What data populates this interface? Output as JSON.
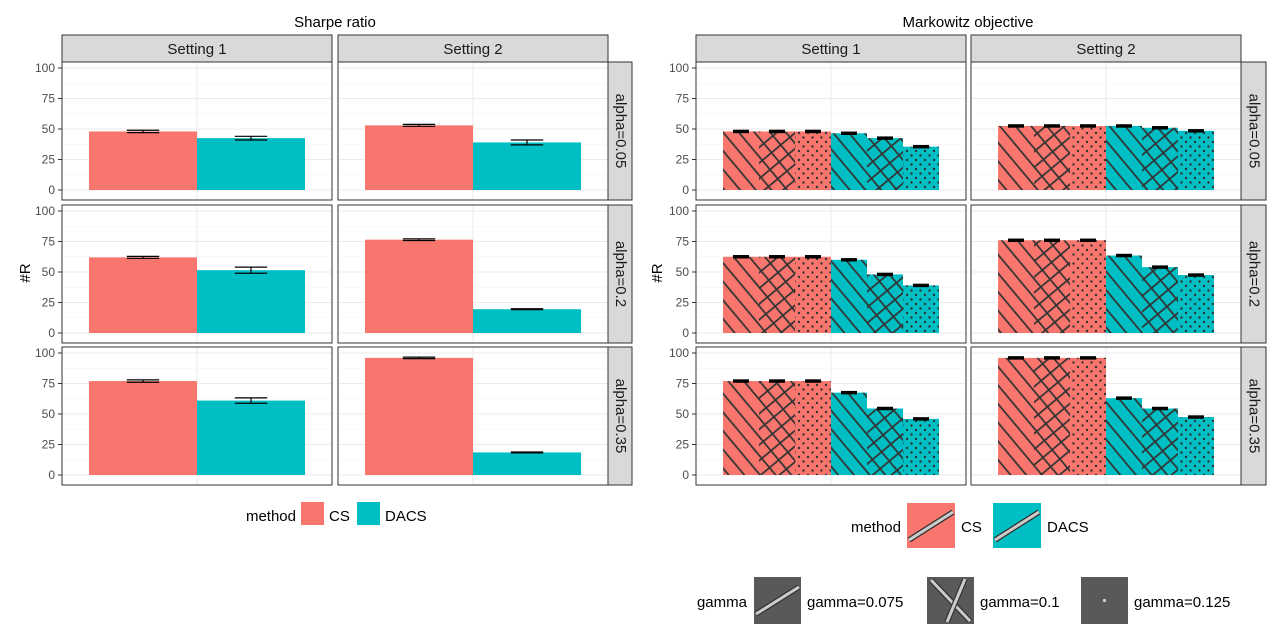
{
  "colors": {
    "CS": "#f8766d",
    "DACS": "#00bfc4",
    "strip_bg": "#d9d9d9",
    "pattern_ink": "#333333"
  },
  "chart_data": [
    {
      "type": "bar",
      "title": "Sharpe ratio",
      "ylabel": "#R",
      "ylim": [
        0,
        100
      ],
      "yticks": [
        0,
        25,
        50,
        75,
        100
      ],
      "columns": [
        "Setting 1",
        "Setting 2"
      ],
      "rows": [
        "alpha=0.05",
        "alpha=0.2",
        "alpha=0.35"
      ],
      "legend": {
        "title": "method",
        "items": [
          "CS",
          "DACS"
        ]
      },
      "panels": [
        {
          "row": 0,
          "col": 0,
          "bars": [
            {
              "method": "CS",
              "value": 48,
              "err": 1.0
            },
            {
              "method": "DACS",
              "value": 42.5,
              "err": 1.5
            }
          ]
        },
        {
          "row": 0,
          "col": 1,
          "bars": [
            {
              "method": "CS",
              "value": 53,
              "err": 0.8
            },
            {
              "method": "DACS",
              "value": 39,
              "err": 2.0
            }
          ]
        },
        {
          "row": 1,
          "col": 0,
          "bars": [
            {
              "method": "CS",
              "value": 62,
              "err": 0.8
            },
            {
              "method": "DACS",
              "value": 51.5,
              "err": 2.5
            }
          ]
        },
        {
          "row": 1,
          "col": 1,
          "bars": [
            {
              "method": "CS",
              "value": 76.5,
              "err": 0.7
            },
            {
              "method": "DACS",
              "value": 19.5,
              "err": 0.4
            }
          ]
        },
        {
          "row": 2,
          "col": 0,
          "bars": [
            {
              "method": "CS",
              "value": 77,
              "err": 1.0
            },
            {
              "method": "DACS",
              "value": 61,
              "err": 2.2
            }
          ]
        },
        {
          "row": 2,
          "col": 1,
          "bars": [
            {
              "method": "CS",
              "value": 96,
              "err": 0.6
            },
            {
              "method": "DACS",
              "value": 18.5,
              "err": 0.4
            }
          ]
        }
      ]
    },
    {
      "type": "bar",
      "title": "Markowitz objective",
      "ylabel": "#R",
      "ylim": [
        0,
        100
      ],
      "yticks": [
        0,
        25,
        50,
        75,
        100
      ],
      "columns": [
        "Setting 1",
        "Setting 2"
      ],
      "rows": [
        "alpha=0.05",
        "alpha=0.2",
        "alpha=0.35"
      ],
      "legend": {
        "title": "method",
        "items": [
          "CS",
          "DACS"
        ]
      },
      "legend2": {
        "title": "gamma",
        "items": [
          "gamma=0.075",
          "gamma=0.1",
          "gamma=0.125"
        ]
      },
      "panels": [
        {
          "row": 0,
          "col": 0,
          "bars": [
            {
              "method": "CS",
              "gamma": "gamma=0.075",
              "value": 48,
              "err": 0.6
            },
            {
              "method": "CS",
              "gamma": "gamma=0.1",
              "value": 48,
              "err": 0.6
            },
            {
              "method": "CS",
              "gamma": "gamma=0.125",
              "value": 48,
              "err": 0.6
            },
            {
              "method": "DACS",
              "gamma": "gamma=0.075",
              "value": 46.5,
              "err": 0.6
            },
            {
              "method": "DACS",
              "gamma": "gamma=0.1",
              "value": 42.5,
              "err": 0.6
            },
            {
              "method": "DACS",
              "gamma": "gamma=0.125",
              "value": 35.5,
              "err": 0.6
            }
          ]
        },
        {
          "row": 0,
          "col": 1,
          "bars": [
            {
              "method": "CS",
              "gamma": "gamma=0.075",
              "value": 52.5,
              "err": 0.6
            },
            {
              "method": "CS",
              "gamma": "gamma=0.1",
              "value": 52.5,
              "err": 0.6
            },
            {
              "method": "CS",
              "gamma": "gamma=0.125",
              "value": 52.5,
              "err": 0.6
            },
            {
              "method": "DACS",
              "gamma": "gamma=0.075",
              "value": 52.5,
              "err": 0.6
            },
            {
              "method": "DACS",
              "gamma": "gamma=0.1",
              "value": 51,
              "err": 0.6
            },
            {
              "method": "DACS",
              "gamma": "gamma=0.125",
              "value": 48.5,
              "err": 0.6
            }
          ]
        },
        {
          "row": 1,
          "col": 0,
          "bars": [
            {
              "method": "CS",
              "gamma": "gamma=0.075",
              "value": 62.5,
              "err": 0.6
            },
            {
              "method": "CS",
              "gamma": "gamma=0.1",
              "value": 62.5,
              "err": 0.6
            },
            {
              "method": "CS",
              "gamma": "gamma=0.125",
              "value": 62.5,
              "err": 0.6
            },
            {
              "method": "DACS",
              "gamma": "gamma=0.075",
              "value": 60,
              "err": 0.6
            },
            {
              "method": "DACS",
              "gamma": "gamma=0.1",
              "value": 48,
              "err": 0.6
            },
            {
              "method": "DACS",
              "gamma": "gamma=0.125",
              "value": 39,
              "err": 0.6
            }
          ]
        },
        {
          "row": 1,
          "col": 1,
          "bars": [
            {
              "method": "CS",
              "gamma": "gamma=0.075",
              "value": 76,
              "err": 0.6
            },
            {
              "method": "CS",
              "gamma": "gamma=0.1",
              "value": 76,
              "err": 0.6
            },
            {
              "method": "CS",
              "gamma": "gamma=0.125",
              "value": 76,
              "err": 0.6
            },
            {
              "method": "DACS",
              "gamma": "gamma=0.075",
              "value": 63.5,
              "err": 0.6
            },
            {
              "method": "DACS",
              "gamma": "gamma=0.1",
              "value": 54,
              "err": 0.6
            },
            {
              "method": "DACS",
              "gamma": "gamma=0.125",
              "value": 47.5,
              "err": 0.6
            }
          ]
        },
        {
          "row": 2,
          "col": 0,
          "bars": [
            {
              "method": "CS",
              "gamma": "gamma=0.075",
              "value": 77,
              "err": 0.6
            },
            {
              "method": "CS",
              "gamma": "gamma=0.1",
              "value": 77,
              "err": 0.6
            },
            {
              "method": "CS",
              "gamma": "gamma=0.125",
              "value": 77,
              "err": 0.6
            },
            {
              "method": "DACS",
              "gamma": "gamma=0.075",
              "value": 67.5,
              "err": 0.6
            },
            {
              "method": "DACS",
              "gamma": "gamma=0.1",
              "value": 54.5,
              "err": 0.6
            },
            {
              "method": "DACS",
              "gamma": "gamma=0.125",
              "value": 46,
              "err": 0.6
            }
          ]
        },
        {
          "row": 2,
          "col": 1,
          "bars": [
            {
              "method": "CS",
              "gamma": "gamma=0.075",
              "value": 96,
              "err": 0.6
            },
            {
              "method": "CS",
              "gamma": "gamma=0.1",
              "value": 96,
              "err": 0.6
            },
            {
              "method": "CS",
              "gamma": "gamma=0.125",
              "value": 96,
              "err": 0.6
            },
            {
              "method": "DACS",
              "gamma": "gamma=0.075",
              "value": 63,
              "err": 0.6
            },
            {
              "method": "DACS",
              "gamma": "gamma=0.1",
              "value": 54.5,
              "err": 0.6
            },
            {
              "method": "DACS",
              "gamma": "gamma=0.125",
              "value": 47.5,
              "err": 0.6
            }
          ]
        }
      ]
    }
  ]
}
